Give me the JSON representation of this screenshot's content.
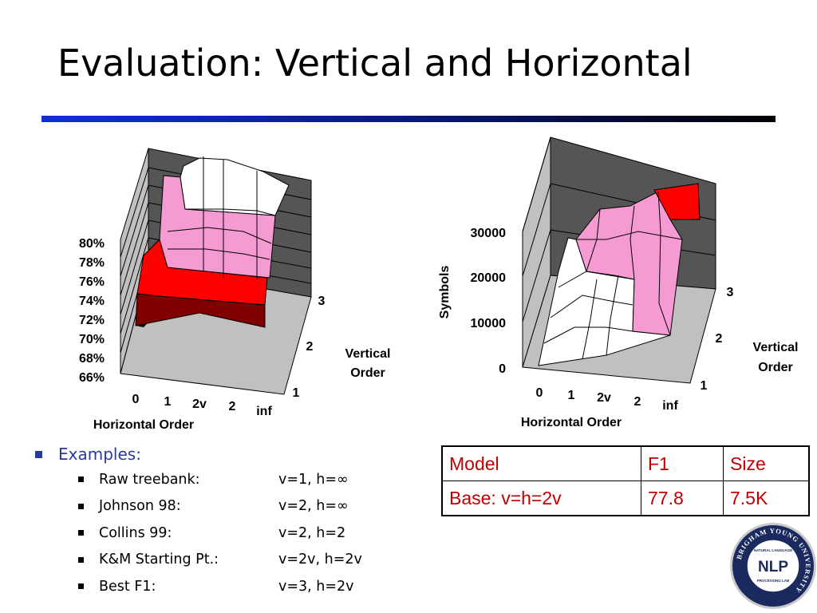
{
  "title": "Evaluation: Vertical and Horizontal",
  "chart_data": [
    {
      "type": "surface",
      "metric": "F1",
      "yticks": [
        "80%",
        "78%",
        "76%",
        "74%",
        "72%",
        "70%",
        "68%",
        "66%"
      ],
      "xlabel": "Horizontal Order",
      "xticks": [
        "0",
        "1",
        "2v",
        "2",
        "inf"
      ],
      "zlabel": "Vertical\nOrder",
      "zlabel_lines": [
        "Vertical",
        "Order"
      ],
      "zticks": [
        "1",
        "2",
        "3"
      ],
      "colors": {
        "white": "#ffffff",
        "pink": "#f59ad2",
        "red": "#ff0000",
        "darkred": "#800000",
        "black": "#000000"
      }
    },
    {
      "type": "surface",
      "metric": "Symbols",
      "ylabel": "Symbols",
      "yticks": [
        "30000",
        "20000",
        "10000",
        "0"
      ],
      "xlabel": "Horizontal Order",
      "xticks": [
        "0",
        "1",
        "2v",
        "2",
        "inf"
      ],
      "zlabel_lines": [
        "Vertical",
        "Order"
      ],
      "zticks": [
        "1",
        "2",
        "3"
      ],
      "colors": {
        "white": "#ffffff",
        "pink": "#f59ad2",
        "red": "#ff0000"
      }
    }
  ],
  "bullets": {
    "heading": "Examples:",
    "items": [
      {
        "name": "Raw treebank:",
        "value": "v=1, h=∞"
      },
      {
        "name": "Johnson 98:",
        "value": "v=2, h=∞"
      },
      {
        "name": "Collins 99:",
        "value": "v=2, h=2"
      },
      {
        "name": "K&M Starting Pt.:",
        "value": "v=2v, h=2v"
      },
      {
        "name": "Best F1:",
        "value": "v=3, h=2v"
      }
    ]
  },
  "table": {
    "header": [
      "Model",
      "F1",
      "Size"
    ],
    "row": [
      "Base: v=h=2v",
      "77.8",
      "7.5K"
    ]
  },
  "logo": {
    "ring_text": "BRIGHAM YOUNG UNIVERSITY",
    "inner_top": "NATURAL LANGUAGE",
    "center": "NLP",
    "inner_bottom": "PROCESSING LAB",
    "colors": {
      "navy": "#1a2a5e",
      "white": "#ffffff"
    }
  }
}
